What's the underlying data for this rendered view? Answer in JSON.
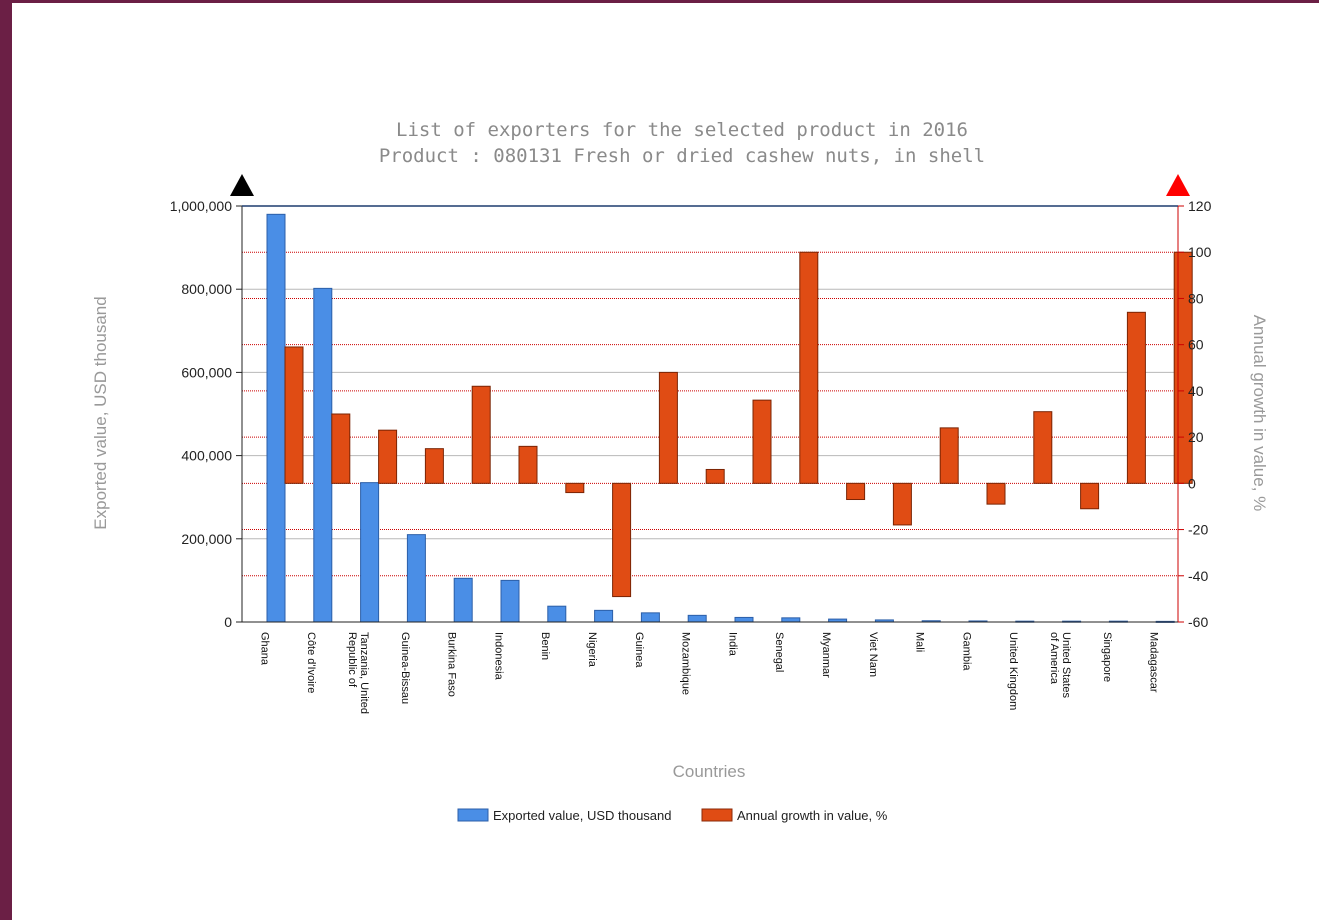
{
  "chart_data": {
    "type": "bar",
    "title": "List of exporters for the selected product in 2016",
    "subtitle": "Product : 080131 Fresh or dried cashew nuts, in shell",
    "xlabel": "Countries",
    "ylabel": "Exported value, USD thousand",
    "y2label": "Annual growth in value, %",
    "ylim": [
      0,
      1000000
    ],
    "y2lim": [
      -60,
      120
    ],
    "yticks": [
      "0",
      "200,000",
      "400,000",
      "600,000",
      "800,000",
      "1,000,000"
    ],
    "yticks_values": [
      0,
      200000,
      400000,
      600000,
      800000,
      1000000
    ],
    "y2ticks": [
      "-60",
      "-40",
      "-20",
      "0",
      "20",
      "40",
      "60",
      "80",
      "100",
      "120"
    ],
    "y2ticks_values": [
      -60,
      -40,
      -20,
      0,
      20,
      40,
      60,
      80,
      100,
      120
    ],
    "categories": [
      "Ghana",
      "Côte d'Ivoire",
      "Tanzania, United Republic of",
      "Guinea-Bissau",
      "Burkina Faso",
      "Indonesia",
      "Benin",
      "Nigeria",
      "Guinea",
      "Mozambique",
      "India",
      "Senegal",
      "Myanmar",
      "Viet Nam",
      "Mali",
      "Gambia",
      "United Kingdom",
      "United States of America",
      "Singapore",
      "Madagascar"
    ],
    "series": [
      {
        "name": "Exported value, USD thousand",
        "axis": "left",
        "color": "#4a8ee6",
        "values": [
          980000,
          802000,
          335000,
          210000,
          105000,
          100000,
          38000,
          28000,
          22000,
          16000,
          11000,
          10000,
          7000,
          5000,
          3000,
          2500,
          2000,
          2000,
          2000,
          1500
        ]
      },
      {
        "name": "Annual growth in value, %",
        "axis": "right",
        "color": "#e04c14",
        "values": [
          59,
          30,
          23,
          15,
          42,
          16,
          -4,
          -49,
          48,
          6,
          36,
          100,
          -7,
          -18,
          24,
          -9,
          31,
          -11,
          74,
          100
        ]
      }
    ],
    "grid": true,
    "legend_position": "bottom-center"
  },
  "colors": {
    "frame": "#6b1f45",
    "left_marker": "#000000",
    "right_marker": "#ff0000",
    "secondary_grid": "#cc0000",
    "primary_grid": "#b8b8b8"
  }
}
